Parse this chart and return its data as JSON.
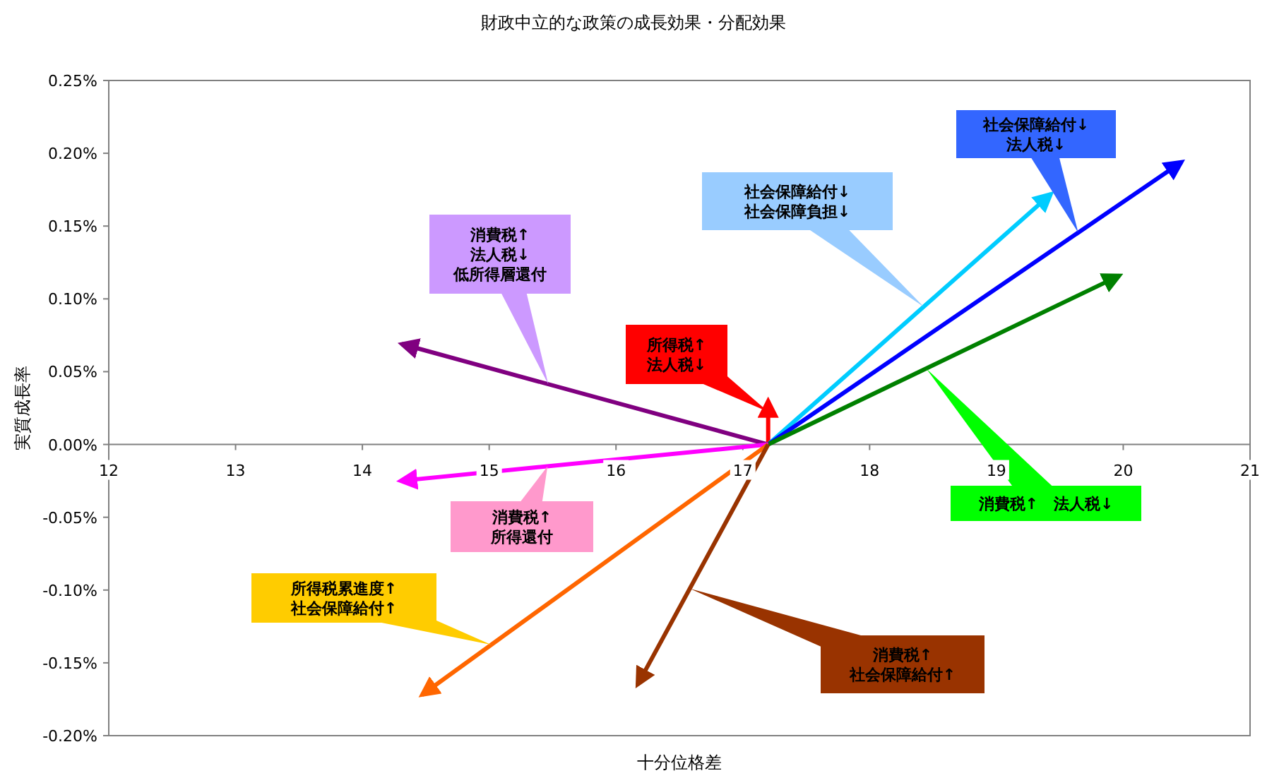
{
  "chart_data": {
    "type": "line",
    "title": "財政中立的な政策の成長効果・分配効果",
    "xlabel": "十分位格差",
    "ylabel": "実質成長率",
    "xlim": [
      12,
      21
    ],
    "xticks": [
      12,
      13,
      14,
      15,
      16,
      17,
      18,
      19,
      20,
      21
    ],
    "ylim": [
      -0.2,
      0.25
    ],
    "yticks": [
      {
        "value": 0.25,
        "label": "0.25%"
      },
      {
        "value": 0.2,
        "label": "0.20%"
      },
      {
        "value": 0.15,
        "label": "0.15%"
      },
      {
        "value": 0.1,
        "label": "0.10%"
      },
      {
        "value": 0.05,
        "label": "0.05%"
      },
      {
        "value": 0,
        "label": "0.00%"
      },
      {
        "value": -0.05,
        "label": "-0.05%"
      },
      {
        "value": -0.1,
        "label": "-0.10%"
      },
      {
        "value": -0.15,
        "label": "-0.15%"
      },
      {
        "value": -0.2,
        "label": "-0.20%"
      }
    ],
    "grid": false,
    "marker": "none",
    "line_style": "solid",
    "series": [
      {
        "color": "#ff0000",
        "x": [
          17.2,
          17.2
        ],
        "values": [
          0,
          0.03
        ]
      },
      {
        "color": "#00ccff",
        "x": [
          17.2,
          19.43
        ],
        "values": [
          0,
          0.172
        ]
      },
      {
        "color": "#0000ff",
        "x": [
          17.2,
          20.46
        ],
        "values": [
          0,
          0.194
        ]
      },
      {
        "color": "#008000",
        "x": [
          17.2,
          19.97
        ],
        "values": [
          0,
          0.116
        ]
      },
      {
        "color": "#800080",
        "x": [
          17.2,
          14.31
        ],
        "values": [
          0,
          0.069
        ]
      },
      {
        "color": "#ff00ff",
        "x": [
          17.2,
          14.3
        ],
        "values": [
          0,
          -0.025
        ]
      },
      {
        "color": "#ff6600",
        "x": [
          17.2,
          14.47
        ],
        "values": [
          0,
          -0.172
        ]
      },
      {
        "color": "#993300",
        "x": [
          17.2,
          16.17
        ],
        "values": [
          0,
          -0.165
        ]
      }
    ],
    "annotations": [
      "所得税↑\n法人税↓",
      "社会保障給付↓\n社会保障負担↓",
      "社会保障給付↓\n法人税↓",
      "消費税↑　法人税↓",
      "消費税↑\n法人税↓\n低所得層還付",
      "消費税↑\n所得還付",
      "所得税累進度↑\n社会保障給付↑",
      "消費税↑\n社会保障給付↑"
    ]
  }
}
